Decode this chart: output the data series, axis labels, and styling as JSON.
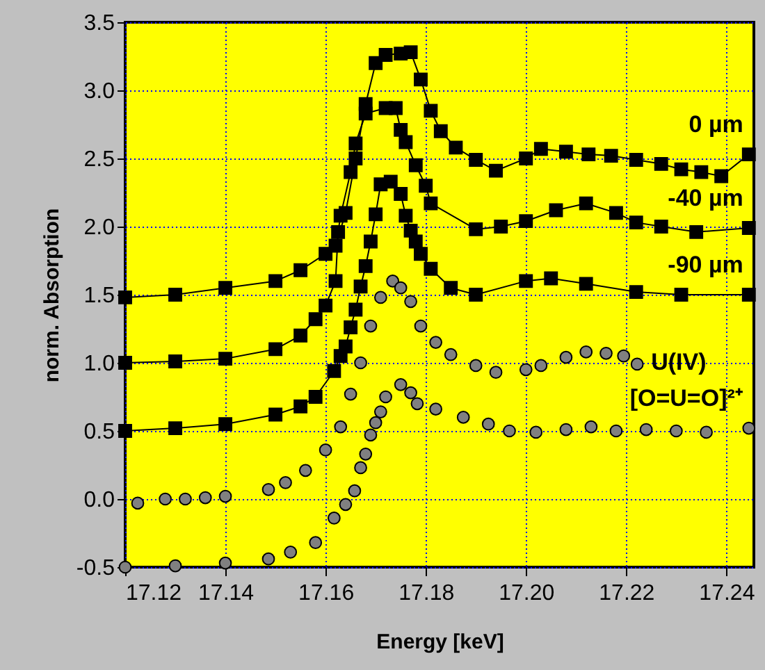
{
  "chart_data": {
    "type": "line",
    "xlabel": "Energy [keV]",
    "ylabel": "norm. Absorption",
    "xlim": [
      17.12,
      17.2455
    ],
    "ylim": [
      -0.5,
      3.5
    ],
    "xticks": [
      17.12,
      17.14,
      17.16,
      17.18,
      {
        "value": 17.2,
        "label": "17.20"
      },
      17.22,
      17.24
    ],
    "yticks": [
      -0.5,
      {
        "value": 0,
        "label": "0.0"
      },
      0.5,
      {
        "value": 1,
        "label": "1.0"
      },
      1.5,
      {
        "value": 2,
        "label": "2.0"
      },
      2.5,
      {
        "value": 3,
        "label": "3.0"
      },
      3.5
    ],
    "grid": true,
    "series": [
      {
        "name": "0 µm",
        "color": "#000000",
        "marker": "square",
        "x": [
          17.12,
          17.13,
          17.14,
          17.15,
          17.155,
          17.16,
          17.162,
          17.164,
          17.166,
          17.168,
          17.17,
          17.172,
          17.175,
          17.177,
          17.179,
          17.181,
          17.183,
          17.186,
          17.19,
          17.194,
          17.2,
          17.203,
          17.208,
          17.2125,
          17.217,
          17.222,
          17.227,
          17.231,
          17.235,
          17.239,
          17.2445
        ],
        "values": [
          1.48,
          1.5,
          1.55,
          1.6,
          1.68,
          1.8,
          1.86,
          2.1,
          2.5,
          2.9,
          3.2,
          3.26,
          3.27,
          3.28,
          3.08,
          2.85,
          2.7,
          2.58,
          2.49,
          2.41,
          2.5,
          2.57,
          2.55,
          2.53,
          2.52,
          2.49,
          2.46,
          2.42,
          2.4,
          2.37,
          2.53
        ]
      },
      {
        "name": "-40 µm",
        "color": "#000000",
        "marker": "square",
        "x": [
          17.12,
          17.13,
          17.14,
          17.15,
          17.155,
          17.158,
          17.16,
          17.162,
          17.1625,
          17.163,
          17.165,
          17.166,
          17.168,
          17.172,
          17.174,
          17.175,
          17.176,
          17.178,
          17.18,
          17.181,
          17.19,
          17.195,
          17.2,
          17.206,
          17.212,
          17.218,
          17.222,
          17.227,
          17.234,
          17.2445
        ],
        "values": [
          1.0,
          1.01,
          1.03,
          1.1,
          1.2,
          1.32,
          1.42,
          1.6,
          1.96,
          2.08,
          2.4,
          2.61,
          2.83,
          2.87,
          2.87,
          2.71,
          2.62,
          2.45,
          2.3,
          2.17,
          1.98,
          2.0,
          2.04,
          2.12,
          2.17,
          2.1,
          2.03,
          2.0,
          1.96,
          1.99
        ]
      },
      {
        "name": "-90 µm",
        "color": "#000000",
        "marker": "square",
        "x": [
          17.12,
          17.13,
          17.14,
          17.15,
          17.155,
          17.158,
          17.1617,
          17.163,
          17.164,
          17.165,
          17.166,
          17.167,
          17.168,
          17.169,
          17.17,
          17.171,
          17.173,
          17.175,
          17.176,
          17.177,
          17.178,
          17.179,
          17.181,
          17.185,
          17.19,
          17.2,
          17.205,
          17.212,
          17.222,
          17.231,
          17.2445
        ],
        "values": [
          0.5,
          0.52,
          0.55,
          0.62,
          0.68,
          0.75,
          0.94,
          1.05,
          1.12,
          1.26,
          1.39,
          1.56,
          1.71,
          1.89,
          2.09,
          2.31,
          2.33,
          2.24,
          2.08,
          1.97,
          1.89,
          1.8,
          1.69,
          1.55,
          1.5,
          1.6,
          1.62,
          1.58,
          1.52,
          1.5,
          1.5
        ]
      },
      {
        "name": "U(IV)",
        "type": "scatter",
        "color": "#808080",
        "marker": "circle",
        "x": [
          17.1225,
          17.128,
          17.132,
          17.136,
          17.14,
          17.1486,
          17.152,
          17.156,
          17.16,
          17.163,
          17.165,
          17.167,
          17.169,
          17.171,
          17.1734,
          17.175,
          17.177,
          17.179,
          17.182,
          17.185,
          17.19,
          17.194,
          17.2,
          17.203,
          17.208,
          17.212,
          17.216,
          17.2195,
          17.2222
        ],
        "values": [
          -0.03,
          0.0,
          0.0,
          0.01,
          0.02,
          0.07,
          0.12,
          0.21,
          0.36,
          0.53,
          0.77,
          1.0,
          1.27,
          1.48,
          1.6,
          1.55,
          1.45,
          1.27,
          1.15,
          1.06,
          0.98,
          0.93,
          0.95,
          0.98,
          1.04,
          1.08,
          1.07,
          1.05,
          0.99
        ]
      },
      {
        "name": "[O=U=O]²⁺",
        "type": "scatter",
        "color": "#808080",
        "marker": "circle",
        "x": [
          17.12,
          17.13,
          17.14,
          17.1486,
          17.153,
          17.158,
          17.1617,
          17.164,
          17.1658,
          17.167,
          17.168,
          17.169,
          17.17,
          17.171,
          17.172,
          17.175,
          17.177,
          17.1783,
          17.182,
          17.1875,
          17.1925,
          17.1967,
          17.202,
          17.208,
          17.213,
          17.218,
          17.224,
          17.23,
          17.236,
          17.2445
        ],
        "values": [
          -0.5,
          -0.49,
          -0.47,
          -0.44,
          -0.39,
          -0.32,
          -0.14,
          -0.04,
          0.06,
          0.23,
          0.33,
          0.47,
          0.56,
          0.64,
          0.75,
          0.84,
          0.78,
          0.7,
          0.66,
          0.6,
          0.55,
          0.5,
          0.49,
          0.51,
          0.53,
          0.5,
          0.51,
          0.5,
          0.49,
          0.52
        ]
      }
    ]
  }
}
